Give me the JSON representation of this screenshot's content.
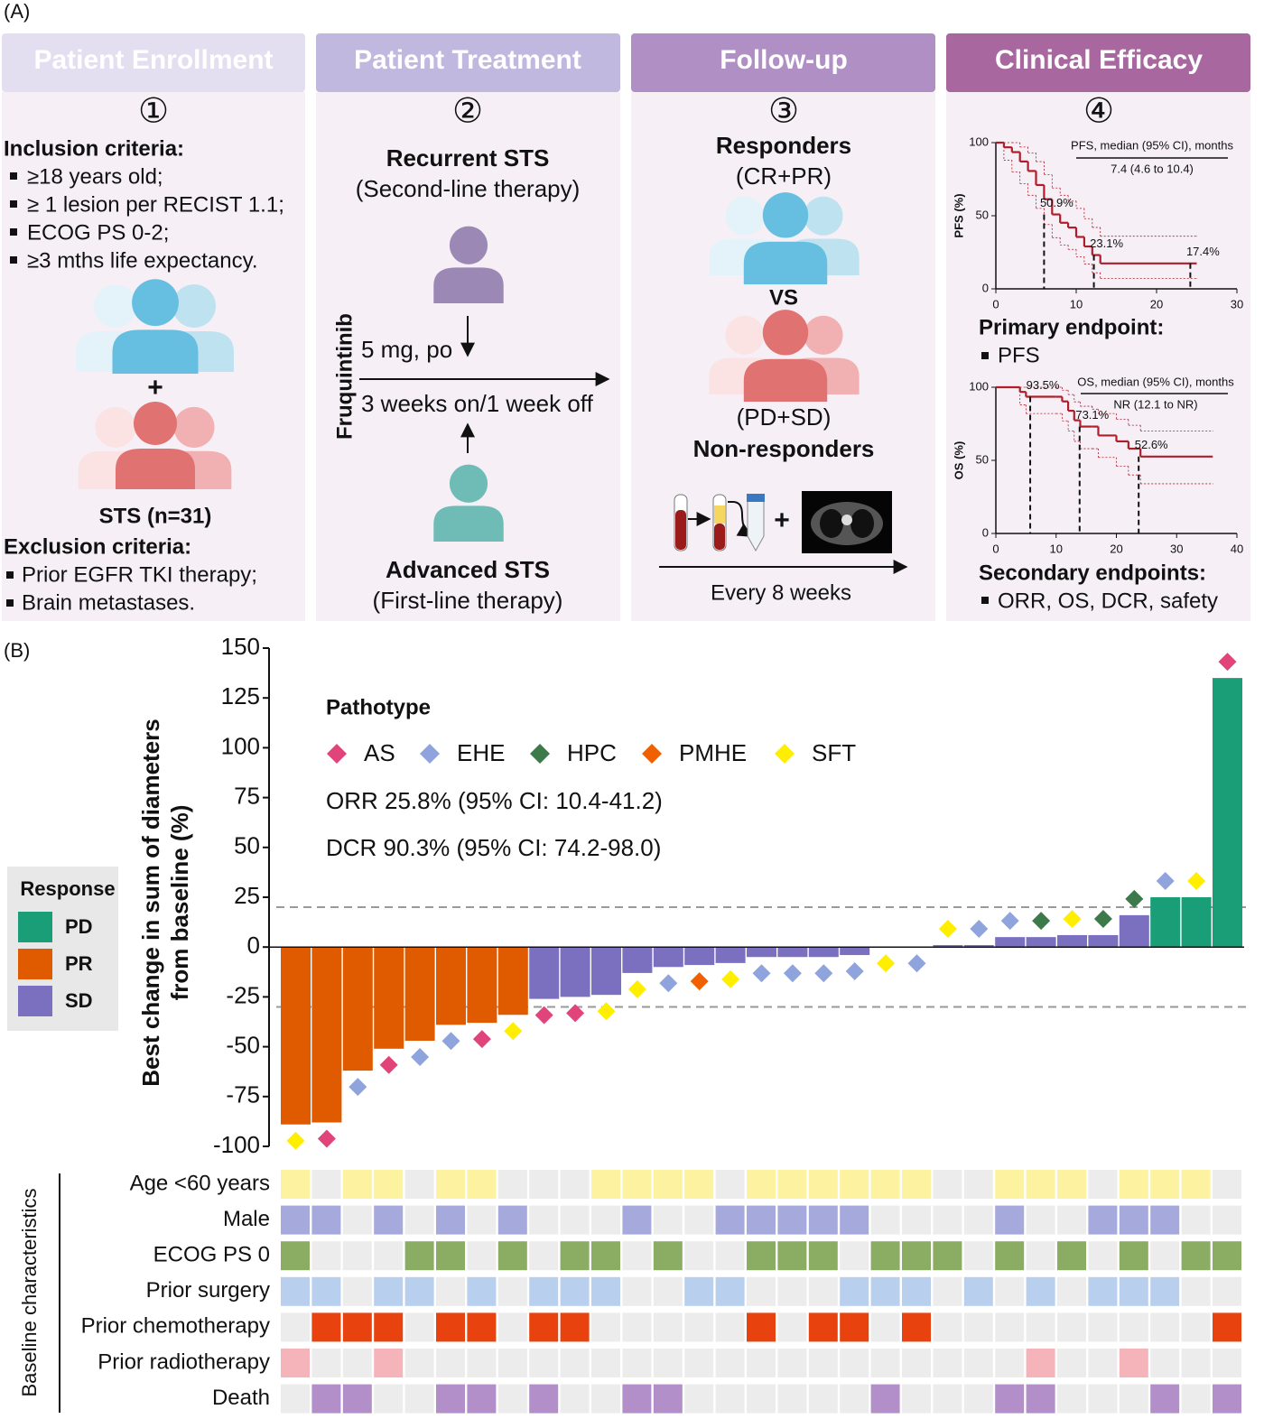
{
  "panel_labels": [
    "(A)",
    "(B)"
  ],
  "workflow": [
    {
      "header": "Patient Enrollment",
      "number": "①",
      "inclusion_title": "Inclusion criteria:",
      "inclusion": [
        "≥18 years old;",
        "≥ 1 lesion per RECIST 1.1;",
        "ECOG PS 0-2;",
        "≥3 mths life expectancy."
      ],
      "plus": "+",
      "cohort": "STS (n=31)",
      "exclusion_title": "Exclusion criteria:",
      "exclusion": [
        "Prior EGFR TKI therapy;",
        "Brain metastases."
      ]
    },
    {
      "header": "Patient Treatment",
      "number": "②",
      "group1": "Recurrent STS",
      "group1_line": "(Second-line therapy)",
      "drug": "Fruquintinib",
      "dose": "5 mg, po",
      "schedule": "3 weeks on/1 week off",
      "group2": "Advanced STS",
      "group2_line": "(First-line therapy)"
    },
    {
      "header": "Follow-up",
      "number": "③",
      "responders": "Responders",
      "responders_def": "(CR+PR)",
      "versus": "VS",
      "nonresponders_def": "(PD+SD)",
      "nonresponders": "Non-responders",
      "plus": "+",
      "interval": "Every 8 weeks"
    },
    {
      "header": "Clinical Efficacy",
      "number": "④",
      "primary_title": "Primary endpoint:",
      "primary": "PFS",
      "secondary_title": "Secondary endpoints:",
      "secondary": "ORR, OS, DCR, safety"
    }
  ],
  "chart_data": [
    {
      "type": "step",
      "ylabel": "PFS (%)",
      "legend_title": "PFS, median (95% CI), months",
      "legend_value": "7.4 (4.6 to 10.4)",
      "xlim": [
        0,
        30
      ],
      "xticks": [
        0,
        10,
        20,
        30
      ],
      "ylim": [
        0,
        100
      ],
      "yticks": [
        0,
        50,
        100
      ],
      "color": "#b01c2a",
      "x": [
        0,
        1,
        2,
        3,
        4,
        5,
        6,
        7,
        8,
        9,
        10,
        11,
        12,
        13,
        25
      ],
      "values": [
        100,
        96.8,
        93.5,
        87.1,
        80.6,
        71,
        61.3,
        50.9,
        45.2,
        41.9,
        35.5,
        29,
        23.1,
        17.4,
        17.4
      ],
      "ci_upper": [
        100,
        100,
        100,
        97,
        93,
        87,
        78,
        69,
        64,
        60,
        55,
        48,
        42,
        36,
        36
      ],
      "ci_lower": [
        100,
        88,
        80,
        72,
        64,
        55,
        44,
        35,
        30,
        27,
        22,
        17,
        11,
        7,
        7
      ],
      "annotations": [
        {
          "label": "50.9%",
          "x": 6,
          "y": 50.9
        },
        {
          "label": "23.1%",
          "x": 12.2,
          "y": 23.1
        },
        {
          "label": "17.4%",
          "x": 24.2,
          "y": 17.4
        }
      ]
    },
    {
      "type": "step",
      "ylabel": "OS (%)",
      "legend_title": "OS, median (95% CI), months",
      "legend_value": "NR (12.1 to NR)",
      "xlim": [
        0,
        40
      ],
      "xticks": [
        0,
        10,
        20,
        30,
        40
      ],
      "ylim": [
        0,
        100
      ],
      "yticks": [
        0,
        50,
        100
      ],
      "color": "#b01c2a",
      "x": [
        0,
        4,
        5,
        10,
        11,
        12,
        13,
        14,
        16,
        17,
        20,
        22,
        24,
        36
      ],
      "values": [
        100,
        96.8,
        93.5,
        93.5,
        90.3,
        83.9,
        77.4,
        73.1,
        73.1,
        67,
        63,
        58,
        52.6,
        52.6
      ],
      "ci_upper": [
        100,
        100,
        100,
        100,
        98,
        95,
        90,
        87,
        85,
        82,
        78,
        74,
        70,
        70
      ],
      "ci_lower": [
        100,
        88,
        82,
        82,
        77,
        70,
        63,
        58,
        58,
        52,
        46,
        40,
        34,
        34
      ],
      "annotations": [
        {
          "label": "93.5%",
          "x": 5.7,
          "y": 93.5
        },
        {
          "label": "73.1%",
          "x": 13.9,
          "y": 73.1
        },
        {
          "label": "52.6%",
          "x": 23.7,
          "y": 52.6
        }
      ]
    },
    {
      "type": "waterfall",
      "ylabel": [
        "Best change in sum of diameters",
        "from baseline (%)"
      ],
      "ylim": [
        -100,
        150
      ],
      "yticks": [
        -100,
        -75,
        -50,
        -25,
        0,
        25,
        50,
        75,
        100,
        125,
        150
      ],
      "values": [
        -89,
        -88,
        -62,
        -51,
        -47,
        -39,
        -38,
        -34,
        -26,
        -25,
        -24,
        -13,
        -10,
        -9,
        -8,
        -5,
        -5,
        -5,
        -4,
        0,
        0,
        1,
        1,
        5,
        5,
        6,
        6,
        16,
        25,
        25,
        135
      ],
      "response": [
        "PR",
        "PR",
        "PR",
        "PR",
        "PR",
        "PR",
        "PR",
        "PR",
        "SD",
        "SD",
        "SD",
        "SD",
        "SD",
        "SD",
        "SD",
        "SD",
        "SD",
        "SD",
        "SD",
        "SD",
        "SD",
        "SD",
        "SD",
        "SD",
        "SD",
        "SD",
        "SD",
        "SD",
        "PD",
        "PD",
        "PD"
      ],
      "pathotype": [
        "SFT",
        "AS",
        "EHE",
        "AS",
        "EHE",
        "EHE",
        "AS",
        "SFT",
        "AS",
        "AS",
        "SFT",
        "SFT",
        "EHE",
        "PMHE",
        "SFT",
        "EHE",
        "EHE",
        "EHE",
        "EHE",
        "SFT",
        "EHE",
        "SFT",
        "EHE",
        "EHE",
        "HPC",
        "SFT",
        "HPC",
        "HPC",
        "EHE",
        "SFT",
        "AS"
      ],
      "response_legend": {
        "title": "Response",
        "items": [
          {
            "name": "PD",
            "color": "#1a9e77"
          },
          {
            "name": "PR",
            "color": "#e05a00"
          },
          {
            "name": "SD",
            "color": "#7b6fc0"
          }
        ]
      },
      "pathotype_legend": {
        "title": "Pathotype",
        "items": [
          {
            "name": "AS",
            "color": "#e0447a"
          },
          {
            "name": "EHE",
            "color": "#8fa3dc"
          },
          {
            "name": "HPC",
            "color": "#3d7a4a"
          },
          {
            "name": "PMHE",
            "color": "#f06000"
          },
          {
            "name": "SFT",
            "color": "#ffee00"
          }
        ]
      },
      "annotations": [
        "ORR 25.8% (95% CI: 10.4-41.2)",
        "DCR 90.3% (95% CI: 74.2-98.0)"
      ],
      "reference_lines": [
        20,
        -30
      ]
    },
    {
      "type": "heatmap",
      "title": "Baseline characteristics",
      "empty_color": "#ececec",
      "rows": [
        {
          "name": "Age <60 years",
          "color": "#fdf2a0",
          "values": [
            1,
            0,
            1,
            1,
            0,
            1,
            1,
            0,
            0,
            0,
            1,
            1,
            1,
            1,
            0,
            1,
            1,
            1,
            1,
            1,
            1,
            0,
            0,
            1,
            1,
            1,
            0,
            1,
            1,
            1,
            0
          ]
        },
        {
          "name": "Male",
          "color": "#a6a9dc",
          "values": [
            1,
            1,
            0,
            1,
            0,
            1,
            0,
            1,
            0,
            0,
            0,
            1,
            0,
            0,
            1,
            1,
            1,
            1,
            1,
            0,
            0,
            0,
            0,
            1,
            0,
            0,
            1,
            1,
            1,
            0,
            0
          ]
        },
        {
          "name": "ECOG PS 0",
          "color": "#8aad63",
          "values": [
            1,
            0,
            0,
            0,
            1,
            1,
            0,
            1,
            0,
            1,
            1,
            0,
            1,
            0,
            0,
            1,
            1,
            1,
            0,
            1,
            1,
            1,
            0,
            1,
            0,
            1,
            0,
            1,
            0,
            1,
            1
          ]
        },
        {
          "name": "Prior surgery",
          "color": "#b9cfee",
          "values": [
            1,
            1,
            0,
            1,
            1,
            0,
            1,
            0,
            1,
            1,
            1,
            0,
            0,
            1,
            1,
            0,
            0,
            0,
            1,
            1,
            1,
            0,
            1,
            0,
            1,
            0,
            1,
            1,
            1,
            0,
            0
          ]
        },
        {
          "name": "Prior chemotherapy",
          "color": "#e8430f",
          "values": [
            0,
            1,
            1,
            1,
            0,
            1,
            1,
            0,
            1,
            1,
            0,
            0,
            0,
            0,
            0,
            1,
            0,
            1,
            1,
            0,
            1,
            0,
            0,
            0,
            0,
            0,
            0,
            0,
            0,
            0,
            1
          ]
        },
        {
          "name": "Prior radiotherapy",
          "color": "#f4b4b9",
          "values": [
            1,
            0,
            0,
            1,
            0,
            0,
            0,
            0,
            0,
            0,
            0,
            0,
            0,
            0,
            0,
            0,
            0,
            0,
            0,
            0,
            0,
            0,
            0,
            0,
            1,
            0,
            0,
            1,
            0,
            0,
            0
          ]
        },
        {
          "name": "Death",
          "color": "#b28fc8",
          "values": [
            0,
            1,
            1,
            0,
            0,
            1,
            1,
            0,
            1,
            0,
            0,
            1,
            1,
            0,
            0,
            0,
            0,
            0,
            0,
            1,
            0,
            0,
            0,
            1,
            1,
            0,
            0,
            0,
            1,
            0,
            1
          ]
        }
      ]
    }
  ]
}
